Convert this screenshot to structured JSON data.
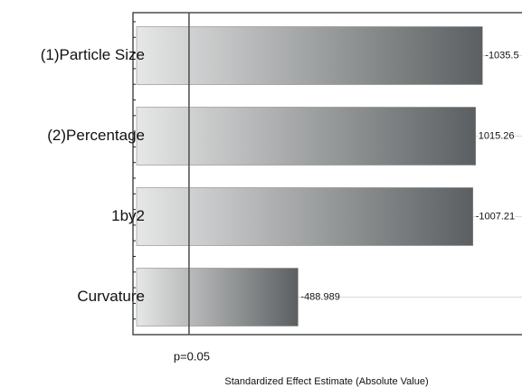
{
  "chart_data": {
    "type": "bar",
    "orientation": "horizontal",
    "x_label": "Standardized Effect Estimate (Absolute Value)",
    "categories": [
      "(1)Particle Size",
      "(2)Percentage",
      "1by2",
      "Curvature"
    ],
    "values": [
      1035.5,
      1015.26,
      1007.21,
      488.989
    ],
    "value_labels": [
      "-1035.5",
      "1015.26",
      "-1007.21",
      "-488.989"
    ],
    "color": [
      "#e6e7e7",
      "#5b5f61"
    ],
    "xlim": [
      0,
      1150
    ],
    "reference_line": {
      "value": 166,
      "label": "p=0.05"
    }
  }
}
